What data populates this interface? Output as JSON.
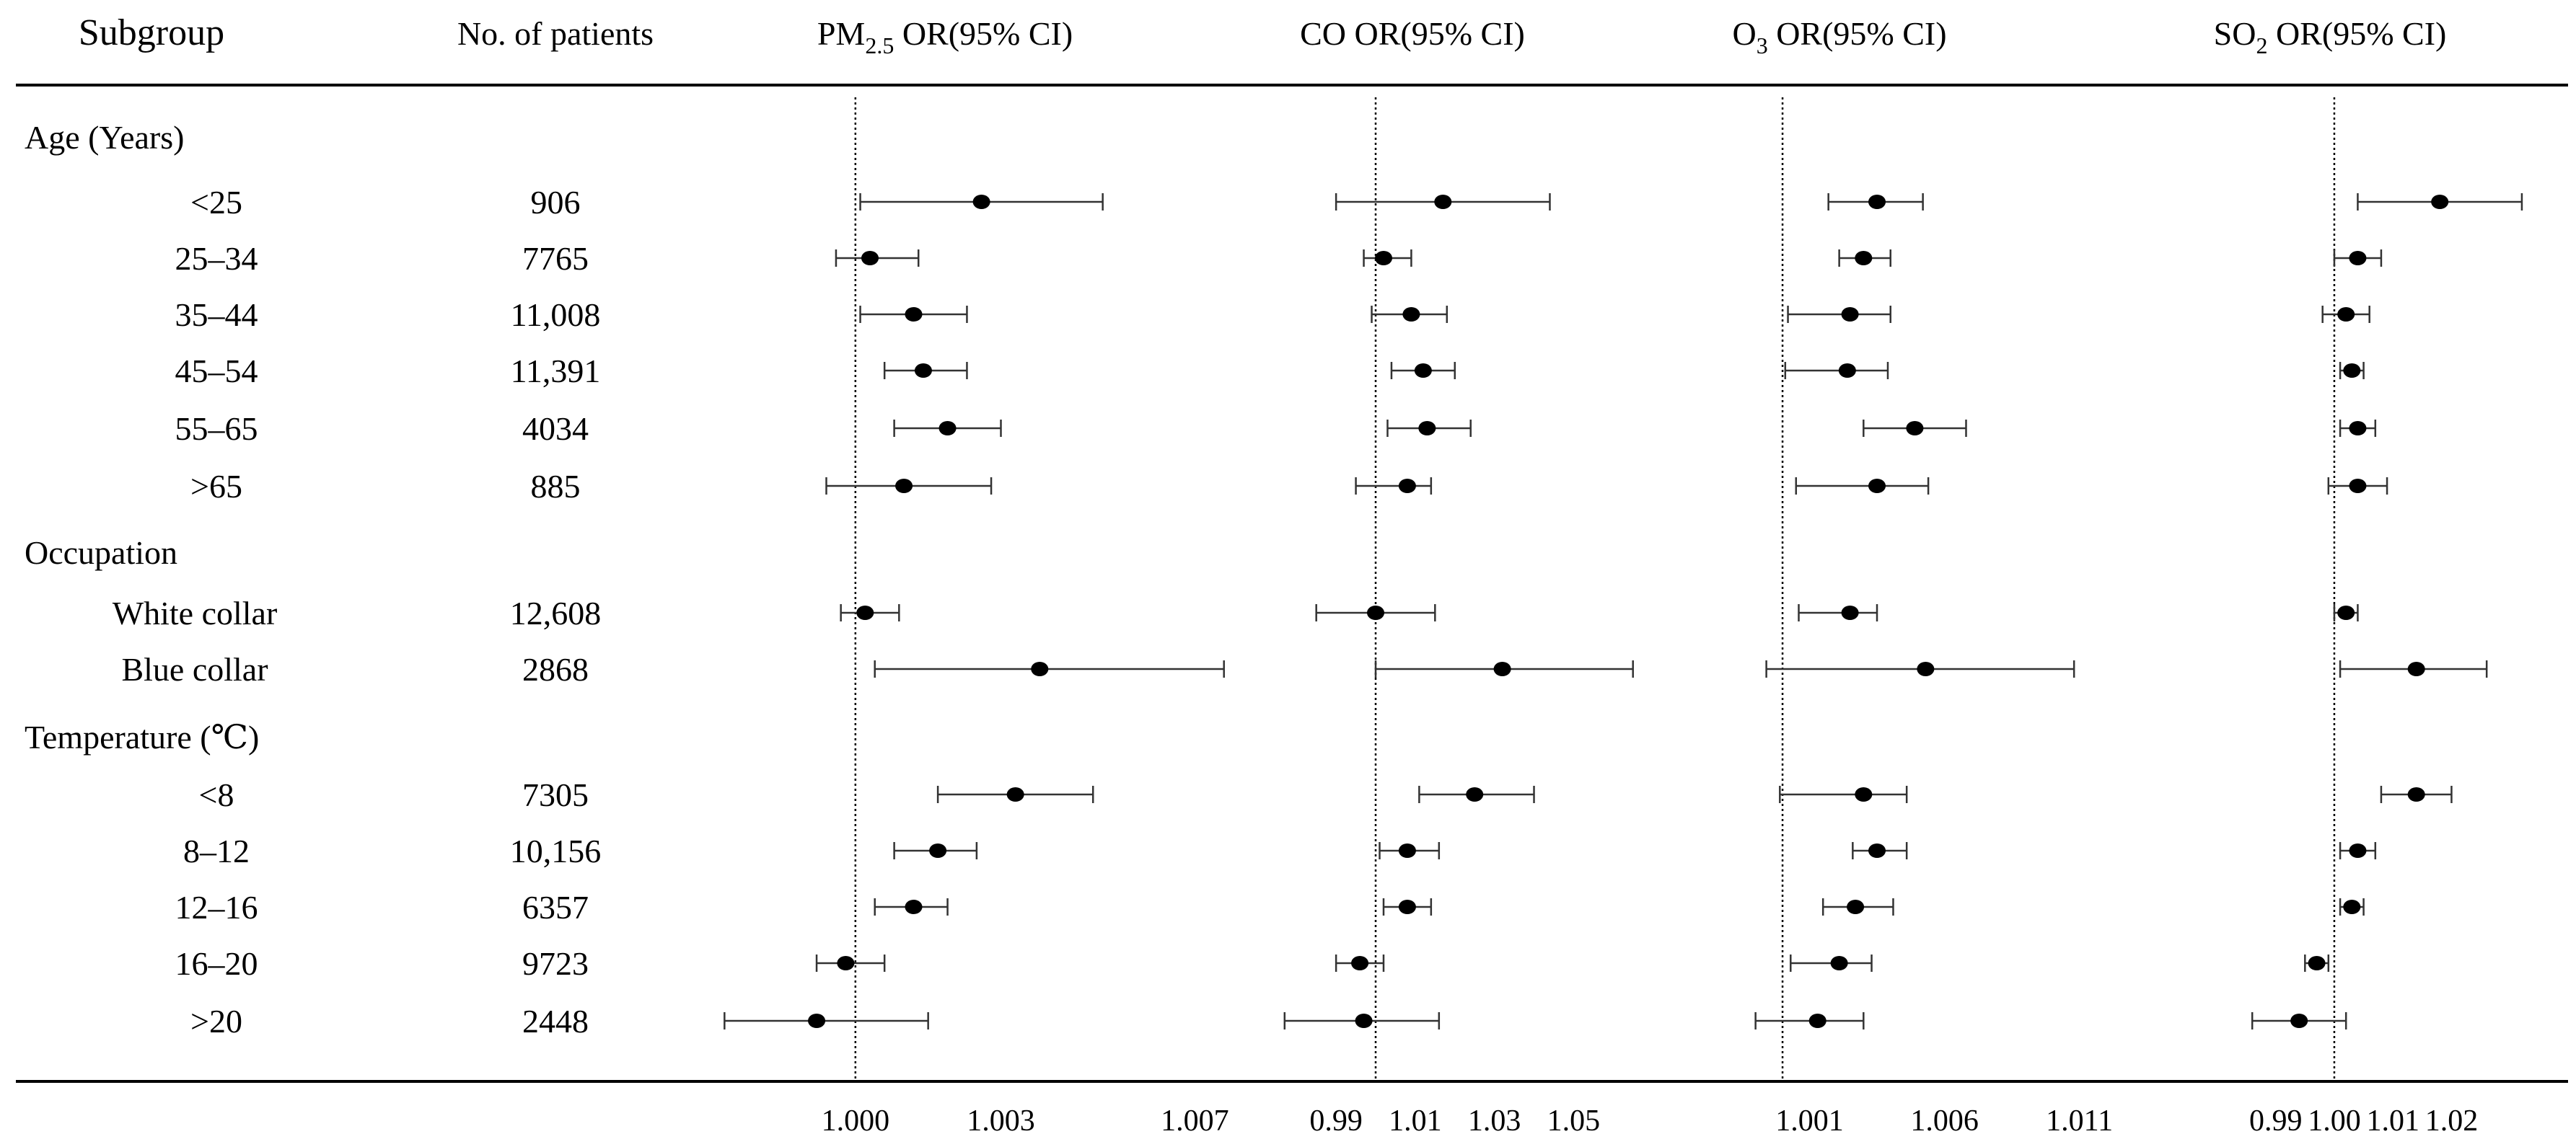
{
  "header": {
    "subgroup": "Subgroup",
    "patients": "No. of patients",
    "pollutants": [
      {
        "main": "PM",
        "sub": "2.5",
        "rest": " OR(95% CI)"
      },
      {
        "main": "CO",
        "sub": "",
        "rest": " OR(95% CI)"
      },
      {
        "main": "O",
        "sub": "3",
        "rest": " OR(95% CI)"
      },
      {
        "main": "SO",
        "sub": "2",
        "rest": " OR(95% CI)"
      }
    ]
  },
  "rows": [
    {
      "label": "Age (Years)",
      "kind": "group",
      "patients": ""
    },
    {
      "label": "<25",
      "kind": "item",
      "patients": "906"
    },
    {
      "label": "25–34",
      "kind": "item",
      "patients": "7765"
    },
    {
      "label": "35–44",
      "kind": "item",
      "patients": "11,008"
    },
    {
      "label": "45–54",
      "kind": "item",
      "patients": "11,391"
    },
    {
      "label": "55–65",
      "kind": "item",
      "patients": "4034"
    },
    {
      "label": ">65",
      "kind": "item",
      "patients": "885"
    },
    {
      "label": "Occupation",
      "kind": "group",
      "patients": ""
    },
    {
      "label": "White collar",
      "kind": "item",
      "patients": "12,608"
    },
    {
      "label": "Blue collar",
      "kind": "item",
      "patients": "2868"
    },
    {
      "label": "Temperature (℃)",
      "kind": "group",
      "patients": ""
    },
    {
      "label": "<8",
      "kind": "item",
      "patients": "7305"
    },
    {
      "label": "8–12",
      "kind": "item",
      "patients": "10,156"
    },
    {
      "label": "12–16",
      "kind": "item",
      "patients": "6357"
    },
    {
      "label": "16–20",
      "kind": "item",
      "patients": "9723"
    },
    {
      "label": ">20",
      "kind": "item",
      "patients": "2448"
    }
  ],
  "chart_data": [
    {
      "type": "forest",
      "pollutant": "PM2.5",
      "reference": 1.0,
      "xlim": [
        0.9985,
        1.0075
      ],
      "ticks": [
        {
          "v": 1.0,
          "l": "1.000"
        },
        {
          "v": 1.003,
          "l": "1.003"
        },
        {
          "v": 1.007,
          "l": "1.007"
        }
      ],
      "estimates": [
        null,
        {
          "or": 1.0026,
          "lo": 1.0001,
          "hi": 1.0051
        },
        {
          "or": 1.0003,
          "lo": 0.9996,
          "hi": 1.0013
        },
        {
          "or": 1.0012,
          "lo": 1.0001,
          "hi": 1.0023
        },
        {
          "or": 1.0014,
          "lo": 1.0006,
          "hi": 1.0023
        },
        {
          "or": 1.0019,
          "lo": 1.0008,
          "hi": 1.003
        },
        {
          "or": 1.001,
          "lo": 0.9994,
          "hi": 1.0028
        },
        null,
        {
          "or": 1.0002,
          "lo": 0.9997,
          "hi": 1.0009
        },
        {
          "or": 1.0038,
          "lo": 1.0004,
          "hi": 1.0076
        },
        null,
        {
          "or": 1.0033,
          "lo": 1.0017,
          "hi": 1.0049
        },
        {
          "or": 1.0017,
          "lo": 1.0008,
          "hi": 1.0025
        },
        {
          "or": 1.0012,
          "lo": 1.0004,
          "hi": 1.0019
        },
        {
          "or": 0.9998,
          "lo": 0.9992,
          "hi": 1.0006
        },
        {
          "or": 0.9992,
          "lo": 0.9973,
          "hi": 1.0015
        }
      ]
    },
    {
      "type": "forest",
      "pollutant": "CO",
      "reference": 1.0,
      "xlim": [
        0.9805,
        1.0625
      ],
      "ticks": [
        {
          "v": 0.99,
          "l": "0.99"
        },
        {
          "v": 1.01,
          "l": "1.01"
        },
        {
          "v": 1.03,
          "l": "1.03"
        },
        {
          "v": 1.05,
          "l": "1.05"
        }
      ],
      "estimates": [
        null,
        {
          "or": 1.017,
          "lo": 0.99,
          "hi": 1.044
        },
        {
          "or": 1.002,
          "lo": 0.997,
          "hi": 1.009
        },
        {
          "or": 1.009,
          "lo": 0.999,
          "hi": 1.018
        },
        {
          "or": 1.012,
          "lo": 1.004,
          "hi": 1.02
        },
        {
          "or": 1.013,
          "lo": 1.003,
          "hi": 1.024
        },
        {
          "or": 1.008,
          "lo": 0.995,
          "hi": 1.014
        },
        null,
        {
          "or": 1.0,
          "lo": 0.985,
          "hi": 1.015
        },
        {
          "or": 1.032,
          "lo": 1.0,
          "hi": 1.065
        },
        null,
        {
          "or": 1.025,
          "lo": 1.011,
          "hi": 1.04
        },
        {
          "or": 1.008,
          "lo": 1.001,
          "hi": 1.016
        },
        {
          "or": 1.008,
          "lo": 1.002,
          "hi": 1.014
        },
        {
          "or": 0.996,
          "lo": 0.99,
          "hi": 1.002
        },
        {
          "or": 0.997,
          "lo": 0.977,
          "hi": 1.016
        }
      ]
    },
    {
      "type": "forest",
      "pollutant": "O3",
      "reference": 1.0,
      "xlim": [
        0.9977,
        1.0128
      ],
      "ticks": [
        {
          "v": 1.001,
          "l": "1.001"
        },
        {
          "v": 1.006,
          "l": "1.006"
        },
        {
          "v": 1.011,
          "l": "1.011"
        }
      ],
      "estimates": [
        null,
        {
          "or": 1.0035,
          "lo": 1.0017,
          "hi": 1.0052
        },
        {
          "or": 1.003,
          "lo": 1.0021,
          "hi": 1.004
        },
        {
          "or": 1.0025,
          "lo": 1.0002,
          "hi": 1.004
        },
        {
          "or": 1.0024,
          "lo": 1.0001,
          "hi": 1.0039
        },
        {
          "or": 1.0049,
          "lo": 1.003,
          "hi": 1.0068
        },
        {
          "or": 1.0035,
          "lo": 1.0005,
          "hi": 1.0054
        },
        null,
        {
          "or": 1.0025,
          "lo": 1.0006,
          "hi": 1.0035
        },
        {
          "or": 1.0053,
          "lo": 0.9994,
          "hi": 1.0108
        },
        null,
        {
          "or": 1.003,
          "lo": 0.9999,
          "hi": 1.0046
        },
        {
          "or": 1.0035,
          "lo": 1.0026,
          "hi": 1.0046
        },
        {
          "or": 1.0027,
          "lo": 1.0015,
          "hi": 1.0041
        },
        {
          "or": 1.0021,
          "lo": 1.0003,
          "hi": 1.0033
        },
        {
          "or": 1.0013,
          "lo": 0.999,
          "hi": 1.003
        }
      ]
    },
    {
      "type": "forest",
      "pollutant": "SO2",
      "reference": 1.0,
      "xlim": [
        0.9765,
        1.0325
      ],
      "ticks": [
        {
          "v": 0.99,
          "l": "0.99"
        },
        {
          "v": 1.0,
          "l": "1.00"
        },
        {
          "v": 1.01,
          "l": "1.01"
        },
        {
          "v": 1.02,
          "l": "1.02"
        }
      ],
      "estimates": [
        null,
        {
          "or": 1.018,
          "lo": 1.004,
          "hi": 1.032
        },
        {
          "or": 1.004,
          "lo": 1.0,
          "hi": 1.008
        },
        {
          "or": 1.002,
          "lo": 0.998,
          "hi": 1.006
        },
        {
          "or": 1.003,
          "lo": 1.001,
          "hi": 1.005
        },
        {
          "or": 1.004,
          "lo": 1.001,
          "hi": 1.007
        },
        {
          "or": 1.004,
          "lo": 0.999,
          "hi": 1.009
        },
        null,
        {
          "or": 1.002,
          "lo": 1.0,
          "hi": 1.004
        },
        {
          "or": 1.014,
          "lo": 1.001,
          "hi": 1.026
        },
        null,
        {
          "or": 1.014,
          "lo": 1.008,
          "hi": 1.02
        },
        {
          "or": 1.004,
          "lo": 1.001,
          "hi": 1.007
        },
        {
          "or": 1.003,
          "lo": 1.001,
          "hi": 1.005
        },
        {
          "or": 0.997,
          "lo": 0.995,
          "hi": 0.999
        },
        {
          "or": 0.994,
          "lo": 0.986,
          "hi": 1.002
        }
      ]
    }
  ]
}
